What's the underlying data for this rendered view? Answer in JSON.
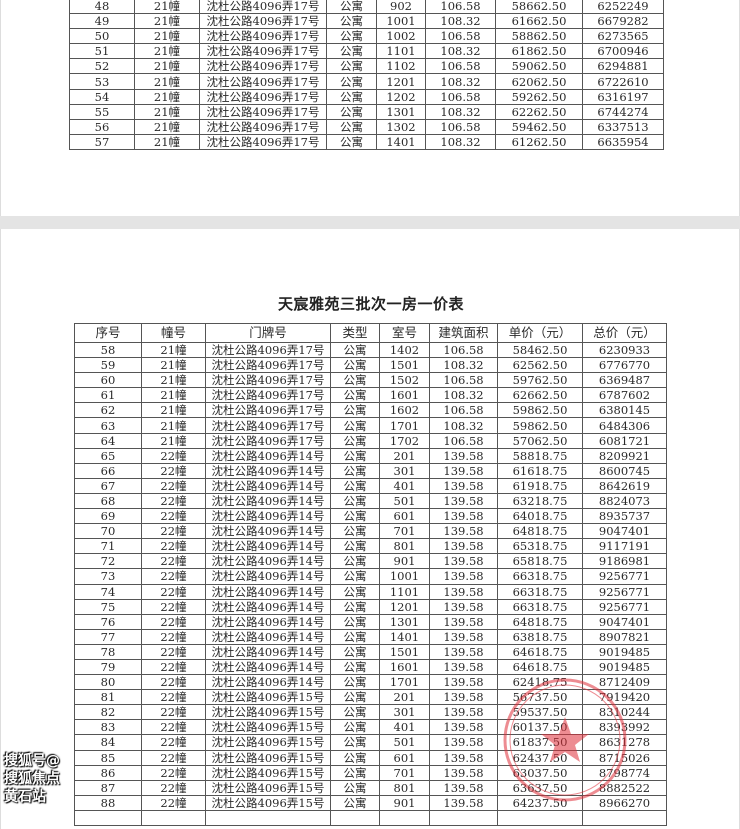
{
  "document": {
    "title": "天宸雅苑三批次一房一价表",
    "headers": [
      "序号",
      "幢号",
      "门牌号",
      "类型",
      "室号",
      "建筑面积",
      "单价（元）",
      "总价（元）"
    ],
    "page1_rows": [
      [
        "48",
        "21幢",
        "沈杜公路4096弄17号",
        "公寓",
        "902",
        "106.58",
        "58662.50",
        "6252249"
      ],
      [
        "49",
        "21幢",
        "沈杜公路4096弄17号",
        "公寓",
        "1001",
        "108.32",
        "61662.50",
        "6679282"
      ],
      [
        "50",
        "21幢",
        "沈杜公路4096弄17号",
        "公寓",
        "1002",
        "106.58",
        "58862.50",
        "6273565"
      ],
      [
        "51",
        "21幢",
        "沈杜公路4096弄17号",
        "公寓",
        "1101",
        "108.32",
        "61862.50",
        "6700946"
      ],
      [
        "52",
        "21幢",
        "沈杜公路4096弄17号",
        "公寓",
        "1102",
        "106.58",
        "59062.50",
        "6294881"
      ],
      [
        "53",
        "21幢",
        "沈杜公路4096弄17号",
        "公寓",
        "1201",
        "108.32",
        "62062.50",
        "6722610"
      ],
      [
        "54",
        "21幢",
        "沈杜公路4096弄17号",
        "公寓",
        "1202",
        "106.58",
        "59262.50",
        "6316197"
      ],
      [
        "55",
        "21幢",
        "沈杜公路4096弄17号",
        "公寓",
        "1301",
        "108.32",
        "62262.50",
        "6744274"
      ],
      [
        "56",
        "21幢",
        "沈杜公路4096弄17号",
        "公寓",
        "1302",
        "106.58",
        "59462.50",
        "6337513"
      ],
      [
        "57",
        "21幢",
        "沈杜公路4096弄17号",
        "公寓",
        "1401",
        "108.32",
        "61262.50",
        "6635954"
      ]
    ],
    "page2_rows": [
      [
        "58",
        "21幢",
        "沈杜公路4096弄17号",
        "公寓",
        "1402",
        "106.58",
        "58462.50",
        "6230933"
      ],
      [
        "59",
        "21幢",
        "沈杜公路4096弄17号",
        "公寓",
        "1501",
        "108.32",
        "62562.50",
        "6776770"
      ],
      [
        "60",
        "21幢",
        "沈杜公路4096弄17号",
        "公寓",
        "1502",
        "106.58",
        "59762.50",
        "6369487"
      ],
      [
        "61",
        "21幢",
        "沈杜公路4096弄17号",
        "公寓",
        "1601",
        "108.32",
        "62662.50",
        "6787602"
      ],
      [
        "62",
        "21幢",
        "沈杜公路4096弄17号",
        "公寓",
        "1602",
        "106.58",
        "59862.50",
        "6380145"
      ],
      [
        "63",
        "21幢",
        "沈杜公路4096弄17号",
        "公寓",
        "1701",
        "108.32",
        "59862.50",
        "6484306"
      ],
      [
        "64",
        "21幢",
        "沈杜公路4096弄17号",
        "公寓",
        "1702",
        "106.58",
        "57062.50",
        "6081721"
      ],
      [
        "65",
        "22幢",
        "沈杜公路4096弄14号",
        "公寓",
        "201",
        "139.58",
        "58818.75",
        "8209921"
      ],
      [
        "66",
        "22幢",
        "沈杜公路4096弄14号",
        "公寓",
        "301",
        "139.58",
        "61618.75",
        "8600745"
      ],
      [
        "67",
        "22幢",
        "沈杜公路4096弄14号",
        "公寓",
        "401",
        "139.58",
        "61918.75",
        "8642619"
      ],
      [
        "68",
        "22幢",
        "沈杜公路4096弄14号",
        "公寓",
        "501",
        "139.58",
        "63218.75",
        "8824073"
      ],
      [
        "69",
        "22幢",
        "沈杜公路4096弄14号",
        "公寓",
        "601",
        "139.58",
        "64018.75",
        "8935737"
      ],
      [
        "70",
        "22幢",
        "沈杜公路4096弄14号",
        "公寓",
        "701",
        "139.58",
        "64818.75",
        "9047401"
      ],
      [
        "71",
        "22幢",
        "沈杜公路4096弄14号",
        "公寓",
        "801",
        "139.58",
        "65318.75",
        "9117191"
      ],
      [
        "72",
        "22幢",
        "沈杜公路4096弄14号",
        "公寓",
        "901",
        "139.58",
        "65818.75",
        "9186981"
      ],
      [
        "73",
        "22幢",
        "沈杜公路4096弄14号",
        "公寓",
        "1001",
        "139.58",
        "66318.75",
        "9256771"
      ],
      [
        "74",
        "22幢",
        "沈杜公路4096弄14号",
        "公寓",
        "1101",
        "139.58",
        "66318.75",
        "9256771"
      ],
      [
        "75",
        "22幢",
        "沈杜公路4096弄14号",
        "公寓",
        "1201",
        "139.58",
        "66318.75",
        "9256771"
      ],
      [
        "76",
        "22幢",
        "沈杜公路4096弄14号",
        "公寓",
        "1301",
        "139.58",
        "64818.75",
        "9047401"
      ],
      [
        "77",
        "22幢",
        "沈杜公路4096弄14号",
        "公寓",
        "1401",
        "139.58",
        "63818.75",
        "8907821"
      ],
      [
        "78",
        "22幢",
        "沈杜公路4096弄14号",
        "公寓",
        "1501",
        "139.58",
        "64618.75",
        "9019485"
      ],
      [
        "79",
        "22幢",
        "沈杜公路4096弄14号",
        "公寓",
        "1601",
        "139.58",
        "64618.75",
        "9019485"
      ],
      [
        "80",
        "22幢",
        "沈杜公路4096弄14号",
        "公寓",
        "1701",
        "139.58",
        "62418.75",
        "8712409"
      ],
      [
        "81",
        "22幢",
        "沈杜公路4096弄15号",
        "公寓",
        "201",
        "139.58",
        "56737.50",
        "7919420"
      ],
      [
        "82",
        "22幢",
        "沈杜公路4096弄15号",
        "公寓",
        "301",
        "139.58",
        "59537.50",
        "8310244"
      ],
      [
        "83",
        "22幢",
        "沈杜公路4096弄15号",
        "公寓",
        "401",
        "139.58",
        "60137.50",
        "8393992"
      ],
      [
        "84",
        "22幢",
        "沈杜公路4096弄15号",
        "公寓",
        "501",
        "139.58",
        "61837.50",
        "8631278"
      ],
      [
        "85",
        "22幢",
        "沈杜公路4096弄15号",
        "公寓",
        "601",
        "139.58",
        "62437.50",
        "8715026"
      ],
      [
        "86",
        "22幢",
        "沈杜公路4096弄15号",
        "公寓",
        "701",
        "139.58",
        "63037.50",
        "8798774"
      ],
      [
        "87",
        "22幢",
        "沈杜公路4096弄15号",
        "公寓",
        "801",
        "139.58",
        "63637.50",
        "8882522"
      ],
      [
        "88",
        "22幢",
        "沈杜公路4096弄15号",
        "公寓",
        "901",
        "139.58",
        "64237.50",
        "8966270"
      ]
    ]
  },
  "stamp": {
    "color": "#e0303a"
  },
  "watermark": "搜狐号@搜狐焦点黄石站"
}
